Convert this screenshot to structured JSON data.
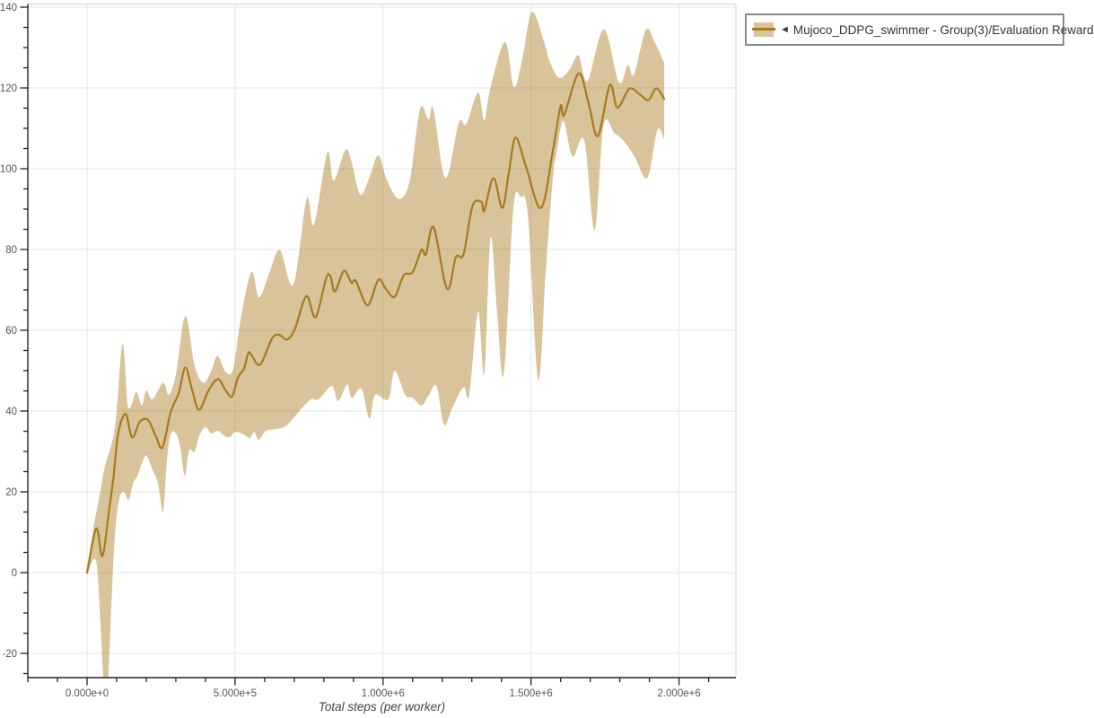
{
  "legend": {
    "marker_icon": "◄",
    "label": "Mujoco_DDPG_swimmer - Group(3)/Evaluation Reward"
  },
  "colors": {
    "line": "#a87a20",
    "band": "rgba(168,122,32,0.45)",
    "band_opaque": "#d9c49c",
    "grid": "#e4e4e4",
    "frame": "#d9d9d9",
    "axis": "#222222",
    "tick_label": "#555555",
    "axis_title": "#444444",
    "legend_border": "#8a8a8a"
  },
  "chart_data": {
    "type": "line",
    "title": "",
    "xlabel": "Total steps (per worker)",
    "ylabel": "",
    "grid": "major",
    "legend_position": "outside-top-right",
    "x_axis": {
      "min": -200000,
      "max": 2190000,
      "minor_step": 100000,
      "major_ticks": [
        {
          "v": 0,
          "label": "0.000e+0"
        },
        {
          "v": 500000,
          "label": "5.000e+5"
        },
        {
          "v": 1000000,
          "label": "1.000e+6"
        },
        {
          "v": 1500000,
          "label": "1.500e+6"
        },
        {
          "v": 2000000,
          "label": "2.000e+6"
        }
      ]
    },
    "y_axis": {
      "min": -26,
      "max": 141,
      "minor_step": 5,
      "major_ticks": [
        {
          "v": -20,
          "label": "-20"
        },
        {
          "v": 0,
          "label": "0"
        },
        {
          "v": 20,
          "label": "20"
        },
        {
          "v": 40,
          "label": "40"
        },
        {
          "v": 60,
          "label": "60"
        },
        {
          "v": 80,
          "label": "80"
        },
        {
          "v": 100,
          "label": "100"
        },
        {
          "v": 120,
          "label": "120"
        },
        {
          "v": 140,
          "label": "140"
        }
      ]
    },
    "series": [
      {
        "name": "Mujoco_DDPG_swimmer - Group(3)/Evaluation Reward",
        "color": "#a87a20",
        "band_color": "rgba(168,122,32,0.45)",
        "mean": [
          [
            0,
            0
          ],
          [
            31000,
            10.9
          ],
          [
            52000,
            4.1
          ],
          [
            75000,
            15.8
          ],
          [
            90000,
            24
          ],
          [
            105000,
            34.4
          ],
          [
            130000,
            39.3
          ],
          [
            152000,
            33.5
          ],
          [
            178000,
            37.3
          ],
          [
            206000,
            37.8
          ],
          [
            232000,
            33.8
          ],
          [
            255000,
            31
          ],
          [
            282000,
            39.6
          ],
          [
            310000,
            44.5
          ],
          [
            332000,
            50.8
          ],
          [
            355000,
            45.2
          ],
          [
            378000,
            40.3
          ],
          [
            410000,
            45
          ],
          [
            441000,
            47.9
          ],
          [
            465000,
            45.5
          ],
          [
            484000,
            43.6
          ],
          [
            494000,
            44.2
          ],
          [
            510000,
            48.3
          ],
          [
            530000,
            50.5
          ],
          [
            545000,
            54.4
          ],
          [
            556000,
            53.8
          ],
          [
            585000,
            51.5
          ],
          [
            626000,
            58.1
          ],
          [
            651000,
            58.8
          ],
          [
            676000,
            57.7
          ],
          [
            702000,
            60.3
          ],
          [
            732000,
            67.3
          ],
          [
            747000,
            68.1
          ],
          [
            773000,
            63.3
          ],
          [
            808000,
            72.9
          ],
          [
            823000,
            73.3
          ],
          [
            837000,
            69.6
          ],
          [
            868000,
            74.7
          ],
          [
            893000,
            71.8
          ],
          [
            908000,
            72.2
          ],
          [
            948000,
            66.2
          ],
          [
            984000,
            72.5
          ],
          [
            1009000,
            70.3
          ],
          [
            1039000,
            68.3
          ],
          [
            1070000,
            73.6
          ],
          [
            1100000,
            74.4
          ],
          [
            1130000,
            79.9
          ],
          [
            1145000,
            78.8
          ],
          [
            1171000,
            85.5
          ],
          [
            1216000,
            70.3
          ],
          [
            1246000,
            78.1
          ],
          [
            1272000,
            78.8
          ],
          [
            1302000,
            90.7
          ],
          [
            1332000,
            91.8
          ],
          [
            1342000,
            89.6
          ],
          [
            1373000,
            97.7
          ],
          [
            1403000,
            90.3
          ],
          [
            1425000,
            99
          ],
          [
            1448000,
            107.7
          ],
          [
            1484000,
            100.3
          ],
          [
            1534000,
            90.3
          ],
          [
            1575000,
            105
          ],
          [
            1600000,
            115.5
          ],
          [
            1612000,
            113.3
          ],
          [
            1661000,
            123.6
          ],
          [
            1695000,
            116
          ],
          [
            1726000,
            108.1
          ],
          [
            1766000,
            120.7
          ],
          [
            1792000,
            115.1
          ],
          [
            1832000,
            119.8
          ],
          [
            1867000,
            118.4
          ],
          [
            1897000,
            117
          ],
          [
            1923000,
            119.9
          ],
          [
            1950000,
            117.3
          ]
        ],
        "band_upper": [
          [
            0,
            0.5
          ],
          [
            24000,
            12
          ],
          [
            45000,
            20
          ],
          [
            60000,
            26.2
          ],
          [
            94000,
            35.8
          ],
          [
            120000,
            56.5
          ],
          [
            139000,
            41
          ],
          [
            166000,
            44.7
          ],
          [
            185000,
            41.4
          ],
          [
            200000,
            45.1
          ],
          [
            221000,
            42.9
          ],
          [
            257000,
            47
          ],
          [
            276000,
            44
          ],
          [
            300000,
            49
          ],
          [
            332000,
            63.5
          ],
          [
            363000,
            51.4
          ],
          [
            393000,
            47
          ],
          [
            420000,
            50
          ],
          [
            441000,
            53.6
          ],
          [
            469000,
            49.6
          ],
          [
            494000,
            50.5
          ],
          [
            517000,
            61.8
          ],
          [
            555000,
            74.4
          ],
          [
            581000,
            68.1
          ],
          [
            615000,
            74
          ],
          [
            651000,
            79.9
          ],
          [
            697000,
            71.4
          ],
          [
            742000,
            92.5
          ],
          [
            767000,
            86.2
          ],
          [
            812000,
            104
          ],
          [
            833000,
            97
          ],
          [
            873000,
            104.7
          ],
          [
            893000,
            101.8
          ],
          [
            923000,
            93.6
          ],
          [
            955000,
            98
          ],
          [
            984000,
            103.3
          ],
          [
            1014000,
            97
          ],
          [
            1054000,
            92.5
          ],
          [
            1090000,
            97
          ],
          [
            1125000,
            114.8
          ],
          [
            1154000,
            112.2
          ],
          [
            1170000,
            114.8
          ],
          [
            1211000,
            97.7
          ],
          [
            1256000,
            111.4
          ],
          [
            1281000,
            111
          ],
          [
            1321000,
            118.8
          ],
          [
            1342000,
            112
          ],
          [
            1362000,
            119.6
          ],
          [
            1412000,
            131.4
          ],
          [
            1442000,
            120.3
          ],
          [
            1470000,
            127
          ],
          [
            1503000,
            138.8
          ],
          [
            1544000,
            131.4
          ],
          [
            1563000,
            126.6
          ],
          [
            1594000,
            122.5
          ],
          [
            1630000,
            124.5
          ],
          [
            1660000,
            128.1
          ],
          [
            1691000,
            121.8
          ],
          [
            1746000,
            134.5
          ],
          [
            1797000,
            121.4
          ],
          [
            1827000,
            125.7
          ],
          [
            1848000,
            123.3
          ],
          [
            1888000,
            134.4
          ],
          [
            1920000,
            131
          ],
          [
            1950000,
            126.2
          ]
        ],
        "band_lower": [
          [
            0,
            -0.5
          ],
          [
            30000,
            3
          ],
          [
            45000,
            -12
          ],
          [
            57000,
            -28
          ],
          [
            70000,
            -28
          ],
          [
            82000,
            -8
          ],
          [
            95000,
            10
          ],
          [
            110000,
            18.5
          ],
          [
            125000,
            20
          ],
          [
            140000,
            18
          ],
          [
            155000,
            22
          ],
          [
            170000,
            24
          ],
          [
            185000,
            27
          ],
          [
            200000,
            29
          ],
          [
            221000,
            25.5
          ],
          [
            240000,
            22
          ],
          [
            257000,
            15.1
          ],
          [
            270000,
            28
          ],
          [
            283000,
            34.3
          ],
          [
            300000,
            34.5
          ],
          [
            315000,
            31
          ],
          [
            330000,
            24
          ],
          [
            345000,
            30.3
          ],
          [
            363000,
            29.9
          ],
          [
            380000,
            34
          ],
          [
            400000,
            36
          ],
          [
            420000,
            34.5
          ],
          [
            443000,
            35.1
          ],
          [
            465000,
            33.8
          ],
          [
            484000,
            33.6
          ],
          [
            499000,
            34.8
          ],
          [
            520000,
            34.5
          ],
          [
            534000,
            34
          ],
          [
            550000,
            33.3
          ],
          [
            565000,
            34.8
          ],
          [
            580000,
            32.9
          ],
          [
            605000,
            35.1
          ],
          [
            635000,
            35.5
          ],
          [
            670000,
            36.2
          ],
          [
            700000,
            38.5
          ],
          [
            736000,
            41.5
          ],
          [
            760000,
            43
          ],
          [
            782000,
            42.9
          ],
          [
            827000,
            46.2
          ],
          [
            848000,
            42.5
          ],
          [
            879000,
            46.6
          ],
          [
            894000,
            43.3
          ],
          [
            927000,
            45.5
          ],
          [
            954000,
            38.1
          ],
          [
            973000,
            44
          ],
          [
            1018000,
            42.9
          ],
          [
            1039000,
            50
          ],
          [
            1075000,
            44
          ],
          [
            1100000,
            43.3
          ],
          [
            1130000,
            41.4
          ],
          [
            1155000,
            44
          ],
          [
            1181000,
            46.2
          ],
          [
            1206000,
            36.6
          ],
          [
            1235000,
            41
          ],
          [
            1272000,
            45.9
          ],
          [
            1291000,
            44
          ],
          [
            1321000,
            64.7
          ],
          [
            1342000,
            49.2
          ],
          [
            1363000,
            82.9
          ],
          [
            1385000,
            65
          ],
          [
            1408000,
            49.2
          ],
          [
            1440000,
            90
          ],
          [
            1465000,
            93
          ],
          [
            1490000,
            88
          ],
          [
            1524000,
            47.7
          ],
          [
            1550000,
            75
          ],
          [
            1575000,
            98.8
          ],
          [
            1585000,
            103.3
          ],
          [
            1609000,
            111.8
          ],
          [
            1640000,
            103
          ],
          [
            1680000,
            107
          ],
          [
            1715000,
            84.8
          ],
          [
            1745000,
            110.7
          ],
          [
            1782000,
            108.8
          ],
          [
            1812000,
            107
          ],
          [
            1850000,
            103
          ],
          [
            1893000,
            97.7
          ],
          [
            1927000,
            109.6
          ],
          [
            1950000,
            107.3
          ]
        ]
      }
    ]
  }
}
